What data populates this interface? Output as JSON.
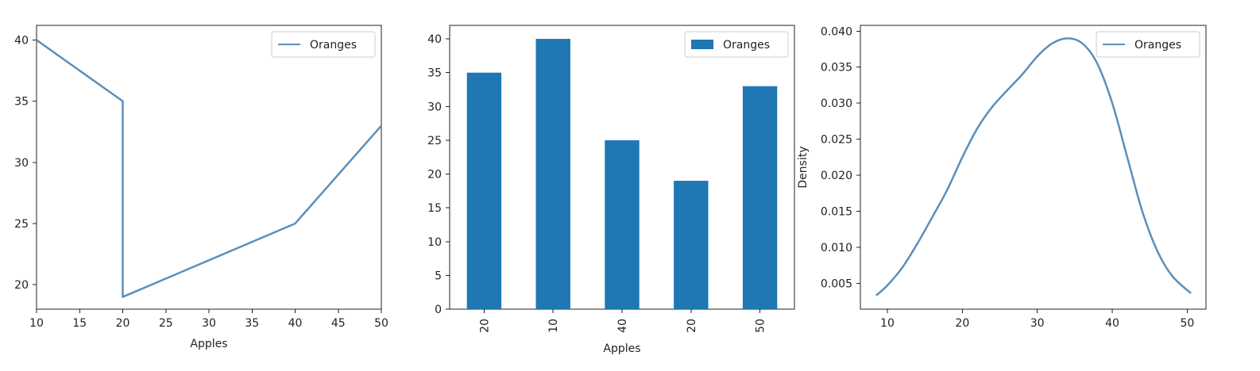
{
  "colors": {
    "series": "#5b8fbb",
    "bar": "#1f77b4"
  },
  "chart_data": [
    {
      "type": "line",
      "xlabel": "Apples",
      "ylabel": "",
      "xlim": [
        10,
        50
      ],
      "ylim": [
        18.0,
        41.2
      ],
      "xticks": [
        10,
        15,
        20,
        25,
        30,
        35,
        40,
        45,
        50
      ],
      "yticks": [
        20,
        25,
        30,
        35,
        40
      ],
      "legend": {
        "position": "top-right",
        "entries": [
          "Oranges"
        ]
      },
      "series": [
        {
          "name": "Oranges",
          "x": [
            10,
            20,
            20,
            40,
            50
          ],
          "y": [
            40,
            35,
            19,
            25,
            33
          ]
        }
      ]
    },
    {
      "type": "bar",
      "xlabel": "Apples",
      "ylabel": "",
      "categories": [
        "20",
        "10",
        "40",
        "20",
        "50"
      ],
      "ylim": [
        0,
        42
      ],
      "yticks": [
        0,
        5,
        10,
        15,
        20,
        25,
        30,
        35,
        40
      ],
      "legend": {
        "position": "top-right",
        "entries": [
          "Oranges"
        ]
      },
      "series": [
        {
          "name": "Oranges",
          "values": [
            35,
            40,
            25,
            19,
            33
          ]
        }
      ]
    },
    {
      "type": "line",
      "xlabel": "",
      "ylabel": "Density",
      "xlim": [
        6.4,
        52.5
      ],
      "ylim": [
        0.0014,
        0.0408
      ],
      "xticks": [
        10,
        20,
        30,
        40,
        50
      ],
      "yticks": [
        0.005,
        0.01,
        0.015,
        0.02,
        0.025,
        0.03,
        0.035,
        0.04
      ],
      "ytick_labels": [
        "0.005",
        "0.010",
        "0.015",
        "0.020",
        "0.025",
        "0.030",
        "0.035",
        "0.040"
      ],
      "legend": {
        "position": "top-right",
        "entries": [
          "Oranges"
        ]
      },
      "series": [
        {
          "name": "Oranges",
          "x": [
            8.5,
            10,
            12,
            14,
            16,
            18,
            20,
            22,
            24,
            26,
            28,
            30,
            32,
            34,
            36,
            38,
            40,
            42,
            44,
            46,
            48,
            50.5
          ],
          "y": [
            0.0033,
            0.0047,
            0.0072,
            0.0105,
            0.0142,
            0.018,
            0.0225,
            0.0265,
            0.0295,
            0.0318,
            0.034,
            0.0365,
            0.0383,
            0.039,
            0.0383,
            0.0355,
            0.03,
            0.0225,
            0.015,
            0.0095,
            0.006,
            0.0036
          ]
        }
      ]
    }
  ]
}
